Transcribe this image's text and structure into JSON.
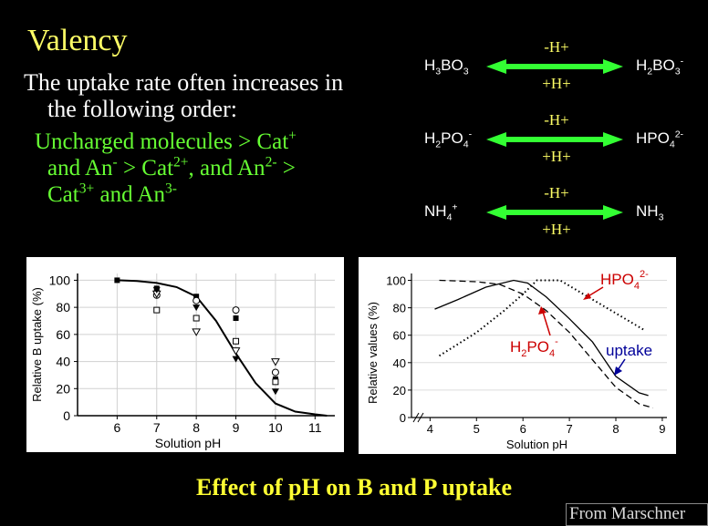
{
  "title": "Valency",
  "intro": {
    "line1": "The uptake rate often increases in",
    "line2": "the following order:"
  },
  "order": {
    "p1": "Uncharged molecules > Cat",
    "p1s": "+",
    "p2": "and An",
    "p2s": "-",
    "p3": " > Cat",
    "p3s": "2+",
    "p4": ", and An",
    "p4s": "2-",
    "p5": " >",
    "p6": "Cat",
    "p6s": "3+",
    "p7": " and An",
    "p7s": "3-"
  },
  "reactions": [
    {
      "left_a": "H",
      "left_sub1": "3",
      "left_b": "BO",
      "left_sub2": "3",
      "left_sup": "",
      "right_a": "H",
      "right_sub1": "2",
      "right_b": "BO",
      "right_sub2": "3",
      "right_sup": "-",
      "top": "-H+",
      "bottom": "+H+"
    },
    {
      "left_a": "H",
      "left_sub1": "2",
      "left_b": "PO",
      "left_sub2": "4",
      "left_sup": "-",
      "right_a": "HPO",
      "right_sub1": "4",
      "right_b": "",
      "right_sub2": "",
      "right_sup": "2-",
      "top": "-H+",
      "bottom": "+H+"
    },
    {
      "left_a": "NH",
      "left_sub1": "4",
      "left_b": "",
      "left_sub2": "",
      "left_sup": "+",
      "right_a": "NH",
      "right_sub1": "3",
      "right_b": "",
      "right_sub2": "",
      "right_sup": "",
      "top": "-H+",
      "bottom": "+H+"
    }
  ],
  "arrow_color": "#33ff33",
  "chart_data": [
    {
      "type": "scatter",
      "xlabel": "Solution pH",
      "ylabel": "Relative B uptake (%)",
      "xlim": [
        5,
        11.5
      ],
      "ylim": [
        0,
        105
      ],
      "xticks": [
        6,
        7,
        8,
        9,
        10,
        11
      ],
      "yticks": [
        0,
        20,
        40,
        60,
        80,
        100
      ],
      "fit_curve": {
        "x": [
          6,
          6.5,
          7,
          7.5,
          8,
          8.5,
          9,
          9.5,
          10,
          10.5,
          11,
          11.3
        ],
        "y": [
          100,
          99.5,
          98,
          95,
          88,
          70,
          46,
          24,
          9,
          3,
          1,
          0
        ]
      },
      "points": {
        "filled_square": [
          [
            6,
            100
          ],
          [
            7,
            94
          ],
          [
            8,
            88
          ],
          [
            9,
            72
          ],
          [
            10,
            27
          ]
        ],
        "open_circle": [
          [
            7,
            89
          ],
          [
            8,
            85
          ],
          [
            9,
            78
          ],
          [
            10,
            32
          ]
        ],
        "open_square": [
          [
            7,
            78
          ],
          [
            8,
            72
          ],
          [
            9,
            55
          ],
          [
            10,
            25
          ]
        ],
        "open_triangle": [
          [
            7,
            90
          ],
          [
            8,
            62
          ],
          [
            9,
            48
          ],
          [
            10,
            40
          ]
        ],
        "filled_triangle": [
          [
            7,
            93
          ],
          [
            8,
            80
          ],
          [
            9,
            42
          ],
          [
            10,
            18
          ]
        ]
      }
    },
    {
      "type": "line",
      "xlabel": "Solution pH",
      "ylabel": "Relative values (%)",
      "xlim": [
        3.6,
        9.1
      ],
      "ylim": [
        0,
        105
      ],
      "xticks": [
        4,
        5,
        6,
        7,
        8,
        9
      ],
      "yticks": [
        0,
        20,
        40,
        60,
        80,
        100
      ],
      "series": [
        {
          "name": "uptake",
          "style": "solid",
          "x": [
            4.1,
            4.6,
            5.2,
            5.8,
            6.1,
            6.5,
            7.0,
            7.5,
            8.0,
            8.5,
            8.7
          ],
          "y": [
            79,
            86,
            95,
            100,
            98,
            88,
            72,
            55,
            30,
            18,
            16
          ]
        },
        {
          "name": "H2PO4-",
          "style": "dashed",
          "x": [
            4.2,
            5.0,
            5.5,
            6.0,
            6.5,
            7.0,
            7.5,
            8.0,
            8.5,
            8.8
          ],
          "y": [
            100,
            99,
            97,
            90,
            78,
            62,
            42,
            22,
            10,
            7
          ]
        },
        {
          "name": "HPO42-",
          "style": "dotted",
          "x": [
            4.2,
            5.0,
            5.6,
            6.0,
            6.3,
            6.8,
            7.2,
            7.8,
            8.3,
            8.6
          ],
          "y": [
            45,
            62,
            78,
            90,
            100,
            100,
            92,
            80,
            70,
            64
          ]
        }
      ],
      "labels": {
        "hpo4": {
          "base": "HPO",
          "sub": "4",
          "sup": "2-",
          "color": "#cc0000"
        },
        "h2po4": {
          "a": "H",
          "sub1": "2",
          "b": "PO",
          "sub2": "4",
          "sup": "-",
          "color": "#cc0000"
        },
        "uptake": {
          "text": "uptake",
          "color": "#000099"
        }
      }
    }
  ],
  "caption": "Effect of pH on B and P uptake",
  "source": "From Marschner"
}
